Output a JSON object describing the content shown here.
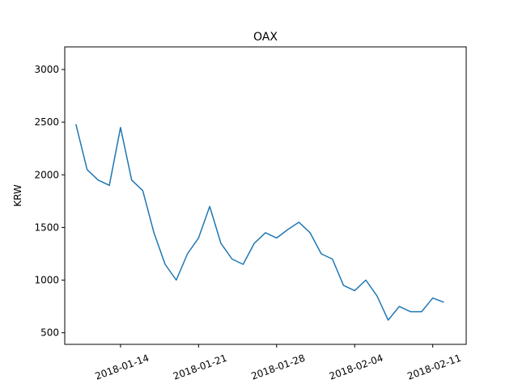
{
  "chart_data": {
    "type": "line",
    "title": "OAX",
    "y_label": "KRW",
    "x": [
      "2018-01-10",
      "2018-01-11",
      "2018-01-12",
      "2018-01-13",
      "2018-01-14",
      "2018-01-15",
      "2018-01-16",
      "2018-01-17",
      "2018-01-18",
      "2018-01-19",
      "2018-01-20",
      "2018-01-21",
      "2018-01-22",
      "2018-01-23",
      "2018-01-24",
      "2018-01-25",
      "2018-01-26",
      "2018-01-27",
      "2018-01-28",
      "2018-01-29",
      "2018-01-30",
      "2018-01-31",
      "2018-02-01",
      "2018-02-02",
      "2018-02-03",
      "2018-02-04",
      "2018-02-05",
      "2018-02-06",
      "2018-02-07",
      "2018-02-08",
      "2018-02-09",
      "2018-02-10",
      "2018-02-11",
      "2018-02-12"
    ],
    "series": [
      {
        "name": "OAX",
        "color": "#1f77b4",
        "values": [
          2480,
          2050,
          1950,
          1900,
          2450,
          1950,
          1850,
          1450,
          1150,
          1000,
          1250,
          1400,
          1700,
          1350,
          1200,
          1150,
          1350,
          1450,
          1400,
          1480,
          1550,
          1450,
          1250,
          1200,
          950,
          900,
          1000,
          850,
          620,
          750,
          700,
          700,
          830,
          790
        ]
      }
    ],
    "xlim": [
      "2018-01-09",
      "2018-02-14"
    ],
    "xticks": [
      "2018-01-14",
      "2018-01-21",
      "2018-01-28",
      "2018-02-04",
      "2018-02-11"
    ],
    "ylim": [
      390,
      3215
    ],
    "yticks": [
      500,
      1000,
      1500,
      2000,
      2500,
      3000
    ],
    "grid": false
  }
}
